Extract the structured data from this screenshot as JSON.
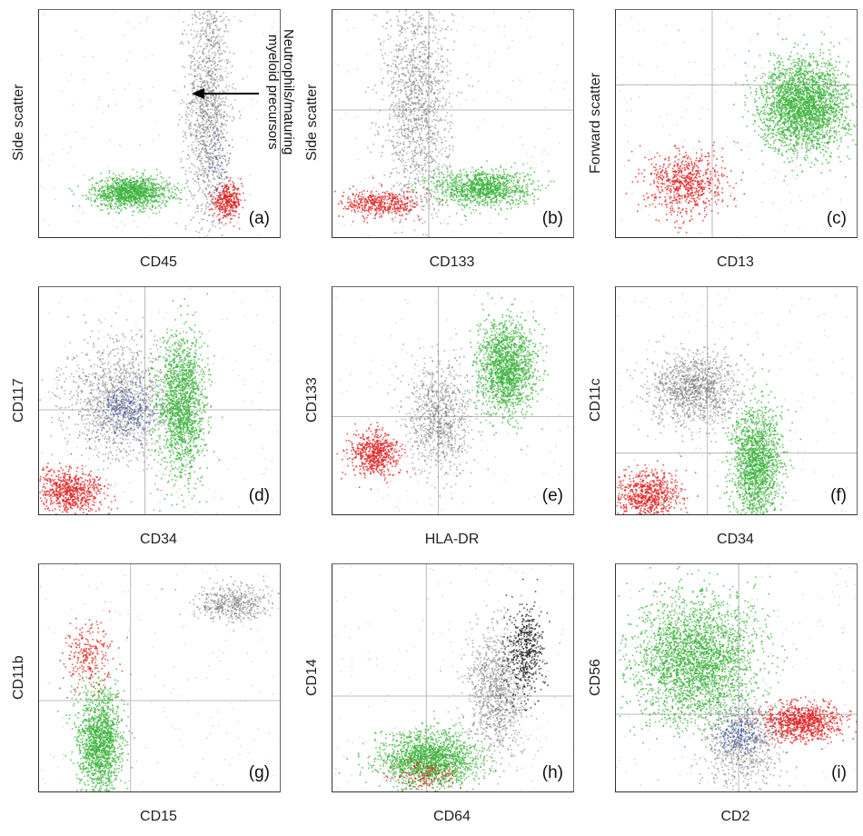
{
  "figure": {
    "panels": [
      {
        "letter": "(a)",
        "xlabel": "CD45",
        "ylabel": "Side scatter",
        "annotation": {
          "line1": "Neutrophils/maturing",
          "line2": "myeloid precursors"
        }
      },
      {
        "letter": "(b)",
        "xlabel": "CD133",
        "ylabel": "Side scatter"
      },
      {
        "letter": "(c)",
        "xlabel": "CD13",
        "ylabel": "Forward scatter"
      },
      {
        "letter": "(d)",
        "xlabel": "CD34",
        "ylabel": "CD117"
      },
      {
        "letter": "(e)",
        "xlabel": "HLA-DR",
        "ylabel": "CD133"
      },
      {
        "letter": "(f)",
        "xlabel": "CD34",
        "ylabel": "CD11c"
      },
      {
        "letter": "(g)",
        "xlabel": "CD15",
        "ylabel": "CD11b"
      },
      {
        "letter": "(h)",
        "xlabel": "CD64",
        "ylabel": "CD14"
      },
      {
        "letter": "(i)",
        "xlabel": "CD2",
        "ylabel": "CD56"
      }
    ]
  },
  "colors": {
    "gray": "#7a7a7a",
    "green": "#3cb43c",
    "red": "#e02020",
    "blue": "#4a5aa8",
    "black": "#222222",
    "gridline": "#bbbbbb"
  },
  "chart_data": [
    {
      "type": "scatter",
      "panel": "(a)",
      "xlabel": "CD45",
      "ylabel": "Side scatter",
      "grid": false,
      "xlim": [
        0,
        1
      ],
      "ylim": [
        0,
        1
      ],
      "series": [
        {
          "color": "gray",
          "cx": 0.7,
          "cy": 0.58,
          "sx": 0.045,
          "sy": 0.28,
          "n": 1400
        },
        {
          "color": "green",
          "cx": 0.38,
          "cy": 0.2,
          "sx": 0.08,
          "sy": 0.035,
          "n": 1200
        },
        {
          "color": "red",
          "cx": 0.78,
          "cy": 0.16,
          "sx": 0.03,
          "sy": 0.035,
          "n": 350
        },
        {
          "color": "blue",
          "cx": 0.74,
          "cy": 0.35,
          "sx": 0.03,
          "sy": 0.08,
          "n": 60
        }
      ]
    },
    {
      "type": "scatter",
      "panel": "(b)",
      "xlabel": "CD133",
      "ylabel": "Side scatter",
      "grid": true,
      "gridlines": {
        "x": 0.4,
        "y": 0.56
      },
      "xlim": [
        0,
        1
      ],
      "ylim": [
        0,
        1
      ],
      "series": [
        {
          "color": "gray",
          "cx": 0.35,
          "cy": 0.58,
          "sx": 0.07,
          "sy": 0.25,
          "n": 1400
        },
        {
          "color": "green",
          "cx": 0.62,
          "cy": 0.22,
          "sx": 0.1,
          "sy": 0.04,
          "n": 1100
        },
        {
          "color": "red",
          "cx": 0.2,
          "cy": 0.15,
          "sx": 0.08,
          "sy": 0.03,
          "n": 450
        }
      ]
    },
    {
      "type": "scatter",
      "panel": "(c)",
      "xlabel": "CD13",
      "ylabel": "Forward scatter",
      "grid": true,
      "gridlines": {
        "x": 0.4,
        "y": 0.67
      },
      "xlim": [
        0,
        1
      ],
      "ylim": [
        0,
        1
      ],
      "series": [
        {
          "color": "green",
          "cx": 0.78,
          "cy": 0.58,
          "sx": 0.09,
          "sy": 0.1,
          "n": 2600
        },
        {
          "color": "red",
          "cx": 0.29,
          "cy": 0.24,
          "sx": 0.08,
          "sy": 0.07,
          "n": 700
        }
      ]
    },
    {
      "type": "scatter",
      "panel": "(d)",
      "xlabel": "CD34",
      "ylabel": "CD117",
      "grid": true,
      "gridlines": {
        "x": 0.44,
        "y": 0.46
      },
      "xlim": [
        0,
        1
      ],
      "ylim": [
        0,
        1
      ],
      "series": [
        {
          "color": "gray",
          "cx": 0.33,
          "cy": 0.5,
          "sx": 0.11,
          "sy": 0.13,
          "n": 1300
        },
        {
          "color": "blue",
          "cx": 0.36,
          "cy": 0.46,
          "sx": 0.06,
          "sy": 0.06,
          "n": 250
        },
        {
          "color": "green",
          "cx": 0.59,
          "cy": 0.48,
          "sx": 0.05,
          "sy": 0.16,
          "n": 1600
        },
        {
          "color": "red",
          "cx": 0.13,
          "cy": 0.1,
          "sx": 0.07,
          "sy": 0.05,
          "n": 700
        }
      ]
    },
    {
      "type": "scatter",
      "panel": "(e)",
      "xlabel": "HLA-DR",
      "ylabel": "CD133",
      "grid": true,
      "gridlines": {
        "x": 0.44,
        "y": 0.43
      },
      "xlim": [
        0,
        1
      ],
      "ylim": [
        0,
        1
      ],
      "series": [
        {
          "color": "green",
          "cx": 0.72,
          "cy": 0.65,
          "sx": 0.06,
          "sy": 0.1,
          "n": 1600
        },
        {
          "color": "gray",
          "cx": 0.44,
          "cy": 0.43,
          "sx": 0.07,
          "sy": 0.12,
          "n": 900
        },
        {
          "color": "red",
          "cx": 0.17,
          "cy": 0.27,
          "sx": 0.05,
          "sy": 0.05,
          "n": 600
        }
      ]
    },
    {
      "type": "scatter",
      "panel": "(f)",
      "xlabel": "CD34",
      "ylabel": "CD11c",
      "grid": true,
      "gridlines": {
        "x": 0.38,
        "y": 0.27
      },
      "xlim": [
        0,
        1
      ],
      "ylim": [
        0,
        1
      ],
      "series": [
        {
          "color": "gray",
          "cx": 0.32,
          "cy": 0.55,
          "sx": 0.09,
          "sy": 0.08,
          "n": 1200
        },
        {
          "color": "green",
          "cx": 0.58,
          "cy": 0.22,
          "sx": 0.05,
          "sy": 0.13,
          "n": 1600
        },
        {
          "color": "red",
          "cx": 0.13,
          "cy": 0.09,
          "sx": 0.07,
          "sy": 0.05,
          "n": 700
        }
      ]
    },
    {
      "type": "scatter",
      "panel": "(g)",
      "xlabel": "CD15",
      "ylabel": "CD11b",
      "grid": true,
      "gridlines": {
        "x": 0.38,
        "y": 0.4
      },
      "xlim": [
        0,
        1
      ],
      "ylim": [
        0,
        1
      ],
      "series": [
        {
          "color": "green",
          "cx": 0.25,
          "cy": 0.22,
          "sx": 0.045,
          "sy": 0.12,
          "n": 1500
        },
        {
          "color": "gray",
          "cx": 0.8,
          "cy": 0.83,
          "sx": 0.08,
          "sy": 0.04,
          "n": 500
        },
        {
          "color": "red",
          "cx": 0.2,
          "cy": 0.6,
          "sx": 0.05,
          "sy": 0.07,
          "n": 250
        }
      ]
    },
    {
      "type": "scatter",
      "panel": "(h)",
      "xlabel": "CD64",
      "ylabel": "CD14",
      "grid": true,
      "gridlines": {
        "x": 0.39,
        "y": 0.42
      },
      "xlim": [
        0,
        1
      ],
      "ylim": [
        0,
        1
      ],
      "series": [
        {
          "color": "green",
          "cx": 0.4,
          "cy": 0.14,
          "sx": 0.1,
          "sy": 0.06,
          "n": 1700
        },
        {
          "color": "gray",
          "cx": 0.68,
          "cy": 0.44,
          "sx": 0.06,
          "sy": 0.14,
          "n": 1000
        },
        {
          "color": "black",
          "cx": 0.8,
          "cy": 0.62,
          "sx": 0.04,
          "sy": 0.1,
          "n": 500
        },
        {
          "color": "red",
          "cx": 0.38,
          "cy": 0.08,
          "sx": 0.07,
          "sy": 0.04,
          "n": 150
        }
      ]
    },
    {
      "type": "scatter",
      "panel": "(i)",
      "xlabel": "CD2",
      "ylabel": "CD56",
      "grid": true,
      "gridlines": {
        "x": 0.51,
        "y": 0.34
      },
      "xlim": [
        0,
        1
      ],
      "ylim": [
        0,
        1
      ],
      "series": [
        {
          "color": "green",
          "cx": 0.33,
          "cy": 0.58,
          "sx": 0.13,
          "sy": 0.14,
          "n": 2800
        },
        {
          "color": "red",
          "cx": 0.77,
          "cy": 0.31,
          "sx": 0.08,
          "sy": 0.04,
          "n": 900
        },
        {
          "color": "gray",
          "cx": 0.52,
          "cy": 0.22,
          "sx": 0.08,
          "sy": 0.1,
          "n": 700
        },
        {
          "color": "blue",
          "cx": 0.52,
          "cy": 0.26,
          "sx": 0.05,
          "sy": 0.05,
          "n": 200
        }
      ]
    }
  ]
}
